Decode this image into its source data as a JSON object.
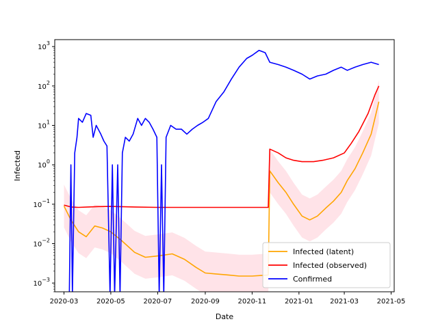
{
  "chart_data": {
    "type": "line",
    "xlabel": "Date",
    "ylabel": "Infected",
    "y_scale": "log",
    "ylim": [
      0.0006,
      1500
    ],
    "xlim": [
      "2020-02-18",
      "2021-05-05"
    ],
    "grid": false,
    "legend_position": "lower-right",
    "x_ticks": [
      "2020-03",
      "2020-05",
      "2020-07",
      "2020-09",
      "2020-11",
      "2021-01",
      "2021-03",
      "2021-05"
    ],
    "y_ticks": [
      {
        "value": 0.001,
        "base": "10",
        "exp": "−3"
      },
      {
        "value": 0.01,
        "base": "10",
        "exp": "−2"
      },
      {
        "value": 0.1,
        "base": "10",
        "exp": "−1"
      },
      {
        "value": 1,
        "base": "10",
        "exp": "0"
      },
      {
        "value": 10,
        "base": "10",
        "exp": "1"
      },
      {
        "value": 100,
        "base": "10",
        "exp": "2"
      },
      {
        "value": 1000,
        "base": "10",
        "exp": "3"
      }
    ],
    "series": [
      {
        "name": "Infected (latent)",
        "color": "#ffa500",
        "band": {
          "color": "#ffc0cb",
          "opacity": 0.45
        },
        "points": [
          [
            "2020-03-01",
            0.09
          ],
          [
            "2020-03-10",
            0.04
          ],
          [
            "2020-03-20",
            0.02
          ],
          [
            "2020-03-30",
            0.015
          ],
          [
            "2020-04-10",
            0.028
          ],
          [
            "2020-04-20",
            0.025
          ],
          [
            "2020-05-01",
            0.02
          ],
          [
            "2020-05-15",
            0.012
          ],
          [
            "2020-06-01",
            0.006
          ],
          [
            "2020-06-15",
            0.0045
          ],
          [
            "2020-06-28",
            0.0048
          ],
          [
            "2020-07-05",
            0.005
          ],
          [
            "2020-07-20",
            0.0055
          ],
          [
            "2020-08-05",
            0.004
          ],
          [
            "2020-08-20",
            0.0025
          ],
          [
            "2020-09-01",
            0.0018
          ],
          [
            "2020-09-15",
            0.0017
          ],
          [
            "2020-10-01",
            0.0016
          ],
          [
            "2020-10-15",
            0.0015
          ],
          [
            "2020-11-01",
            0.0015
          ],
          [
            "2020-11-22",
            0.0016
          ],
          [
            "2020-11-24",
            0.7
          ],
          [
            "2020-12-05",
            0.35
          ],
          [
            "2020-12-15",
            0.2
          ],
          [
            "2020-12-25",
            0.1
          ],
          [
            "2021-01-05",
            0.05
          ],
          [
            "2021-01-15",
            0.04
          ],
          [
            "2021-01-25",
            0.05
          ],
          [
            "2021-02-05",
            0.08
          ],
          [
            "2021-02-15",
            0.12
          ],
          [
            "2021-02-25",
            0.2
          ],
          [
            "2021-03-05",
            0.4
          ],
          [
            "2021-03-15",
            0.8
          ],
          [
            "2021-03-25",
            2
          ],
          [
            "2021-04-05",
            6
          ],
          [
            "2021-04-15",
            40
          ]
        ]
      },
      {
        "name": "Infected (observed)",
        "color": "#ff0000",
        "points": [
          [
            "2020-03-01",
            0.095
          ],
          [
            "2020-03-10",
            0.085
          ],
          [
            "2020-03-20",
            0.083
          ],
          [
            "2020-04-01",
            0.085
          ],
          [
            "2020-04-15",
            0.087
          ],
          [
            "2020-05-01",
            0.088
          ],
          [
            "2020-06-01",
            0.085
          ],
          [
            "2020-07-01",
            0.083
          ],
          [
            "2020-08-01",
            0.083
          ],
          [
            "2020-09-01",
            0.083
          ],
          [
            "2020-10-01",
            0.083
          ],
          [
            "2020-11-01",
            0.083
          ],
          [
            "2020-11-22",
            0.083
          ],
          [
            "2020-11-24",
            2.5
          ],
          [
            "2020-12-05",
            2.0
          ],
          [
            "2020-12-15",
            1.5
          ],
          [
            "2020-12-25",
            1.3
          ],
          [
            "2021-01-05",
            1.2
          ],
          [
            "2021-01-20",
            1.2
          ],
          [
            "2021-02-01",
            1.3
          ],
          [
            "2021-02-15",
            1.5
          ],
          [
            "2021-03-01",
            2.0
          ],
          [
            "2021-03-10",
            3.5
          ],
          [
            "2021-03-20",
            7
          ],
          [
            "2021-04-01",
            20
          ],
          [
            "2021-04-10",
            60
          ],
          [
            "2021-04-15",
            100
          ]
        ]
      },
      {
        "name": "Confirmed",
        "color": "#0000ff",
        "points": [
          [
            "2020-03-08",
            0.0005
          ],
          [
            "2020-03-10",
            1
          ],
          [
            "2020-03-12",
            0.0005
          ],
          [
            "2020-03-15",
            2
          ],
          [
            "2020-03-18",
            5
          ],
          [
            "2020-03-20",
            15
          ],
          [
            "2020-03-25",
            12
          ],
          [
            "2020-03-30",
            20
          ],
          [
            "2020-04-05",
            18
          ],
          [
            "2020-04-08",
            5
          ],
          [
            "2020-04-12",
            10
          ],
          [
            "2020-04-18",
            6
          ],
          [
            "2020-04-22",
            4
          ],
          [
            "2020-04-26",
            3
          ],
          [
            "2020-04-30",
            0.0005
          ],
          [
            "2020-05-03",
            1
          ],
          [
            "2020-05-06",
            0.0005
          ],
          [
            "2020-05-10",
            1
          ],
          [
            "2020-05-13",
            0.0005
          ],
          [
            "2020-05-16",
            2
          ],
          [
            "2020-05-20",
            5
          ],
          [
            "2020-05-25",
            4
          ],
          [
            "2020-05-30",
            6
          ],
          [
            "2020-06-05",
            15
          ],
          [
            "2020-06-10",
            10
          ],
          [
            "2020-06-15",
            15
          ],
          [
            "2020-06-20",
            12
          ],
          [
            "2020-06-25",
            8
          ],
          [
            "2020-06-30",
            5
          ],
          [
            "2020-07-03",
            0.0005
          ],
          [
            "2020-07-06",
            1
          ],
          [
            "2020-07-09",
            0.0005
          ],
          [
            "2020-07-12",
            5
          ],
          [
            "2020-07-18",
            10
          ],
          [
            "2020-07-25",
            8
          ],
          [
            "2020-08-01",
            8
          ],
          [
            "2020-08-08",
            6
          ],
          [
            "2020-08-15",
            8
          ],
          [
            "2020-08-22",
            10
          ],
          [
            "2020-08-29",
            12
          ],
          [
            "2020-09-05",
            15
          ],
          [
            "2020-09-15",
            40
          ],
          [
            "2020-09-25",
            70
          ],
          [
            "2020-10-05",
            150
          ],
          [
            "2020-10-15",
            300
          ],
          [
            "2020-10-25",
            500
          ],
          [
            "2020-11-01",
            600
          ],
          [
            "2020-11-10",
            800
          ],
          [
            "2020-11-18",
            700
          ],
          [
            "2020-11-24",
            400
          ],
          [
            "2020-12-05",
            350
          ],
          [
            "2020-12-15",
            300
          ],
          [
            "2020-12-25",
            250
          ],
          [
            "2021-01-05",
            200
          ],
          [
            "2021-01-15",
            150
          ],
          [
            "2021-01-25",
            180
          ],
          [
            "2021-02-05",
            200
          ],
          [
            "2021-02-15",
            250
          ],
          [
            "2021-02-25",
            300
          ],
          [
            "2021-03-05",
            250
          ],
          [
            "2021-03-15",
            300
          ],
          [
            "2021-03-25",
            350
          ],
          [
            "2021-04-05",
            400
          ],
          [
            "2021-04-15",
            350
          ]
        ]
      }
    ]
  }
}
